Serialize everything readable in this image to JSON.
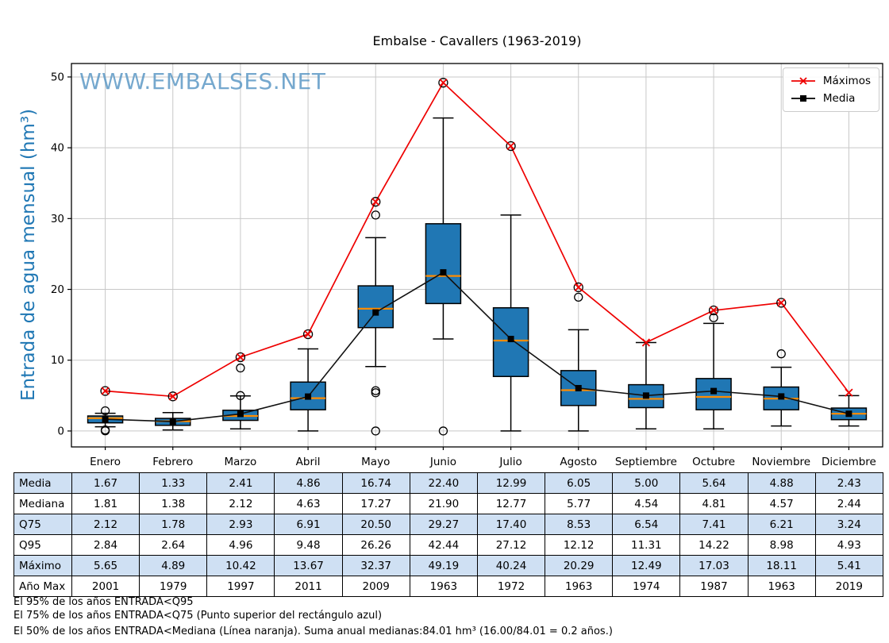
{
  "title": "Embalse - Cavallers (1963-2019)",
  "watermark": "WWW.EMBALSES.NET",
  "legend": {
    "maximos_label": "Máximos",
    "media_label": "Media"
  },
  "y_axis": {
    "label": "Entrada de agua mensual (hm³)",
    "ticks": [
      0,
      10,
      20,
      30,
      40,
      50
    ]
  },
  "months": [
    "Enero",
    "Febrero",
    "Marzo",
    "Abril",
    "Mayo",
    "Junio",
    "Julio",
    "Agosto",
    "Septiembre",
    "Octubre",
    "Noviembre",
    "Diciembre"
  ],
  "chart_data": {
    "type": "boxplot",
    "title": "Embalse - Cavallers (1963-2019)",
    "ylabel": "Entrada de agua mensual (hm³)",
    "categories": [
      "Enero",
      "Febrero",
      "Marzo",
      "Abril",
      "Mayo",
      "Junio",
      "Julio",
      "Agosto",
      "Septiembre",
      "Octubre",
      "Noviembre",
      "Diciembre"
    ],
    "ylim": [
      -2.25,
      51.9
    ],
    "yticks": [
      0,
      10,
      20,
      30,
      40,
      50
    ],
    "grid": true,
    "legend_position": "upper right",
    "box_fill": "#2077b4",
    "box_edge": "#000000",
    "median_color": "#ff8c00",
    "grid_color": "#c8c8c8",
    "series": [
      {
        "name": "Máximos",
        "color": "#ee0000",
        "marker": "x",
        "values": [
          5.65,
          4.89,
          10.42,
          13.67,
          32.37,
          49.19,
          40.24,
          20.29,
          12.49,
          17.03,
          18.11,
          5.41
        ]
      },
      {
        "name": "Media",
        "color": "#111111",
        "marker": "square",
        "values": [
          1.67,
          1.33,
          2.41,
          4.86,
          16.74,
          22.4,
          12.99,
          6.05,
          5.0,
          5.64,
          4.88,
          2.43
        ]
      }
    ],
    "boxes": [
      {
        "month": "Enero",
        "q25": 1.15,
        "median": 1.81,
        "q75": 2.12,
        "whisker_low": 0.6,
        "whisker_high": 2.5,
        "outliers": [
          2.85,
          0.15,
          0.02
        ],
        "max_circled": true
      },
      {
        "month": "Febrero",
        "q25": 0.8,
        "median": 1.38,
        "q75": 1.78,
        "whisker_low": 0.15,
        "whisker_high": 2.6,
        "outliers": [],
        "max_circled": true
      },
      {
        "month": "Marzo",
        "q25": 1.5,
        "median": 2.12,
        "q75": 2.93,
        "whisker_low": 0.3,
        "whisker_high": 4.96,
        "outliers": [
          8.9,
          5.0
        ],
        "max_circled": true
      },
      {
        "month": "Abril",
        "q25": 3.0,
        "median": 4.63,
        "q75": 6.91,
        "whisker_low": 0.0,
        "whisker_high": 11.6,
        "outliers": [],
        "max_circled": true
      },
      {
        "month": "Mayo",
        "q25": 14.6,
        "median": 17.27,
        "q75": 20.5,
        "whisker_low": 9.1,
        "whisker_high": 27.3,
        "outliers": [
          30.5,
          5.7,
          5.4,
          0.0
        ],
        "max_circled": true
      },
      {
        "month": "Junio",
        "q25": 18.0,
        "median": 21.9,
        "q75": 29.27,
        "whisker_low": 13.0,
        "whisker_high": 44.2,
        "outliers": [
          0.0
        ],
        "max_circled": true
      },
      {
        "month": "Julio",
        "q25": 7.7,
        "median": 12.77,
        "q75": 17.4,
        "whisker_low": 0.0,
        "whisker_high": 30.5,
        "outliers": [],
        "max_circled": true
      },
      {
        "month": "Agosto",
        "q25": 3.6,
        "median": 5.77,
        "q75": 8.53,
        "whisker_low": 0.0,
        "whisker_high": 14.3,
        "outliers": [
          18.9
        ],
        "max_circled": true
      },
      {
        "month": "Septiembre",
        "q25": 3.3,
        "median": 4.54,
        "q75": 6.54,
        "whisker_low": 0.3,
        "whisker_high": 12.49,
        "outliers": [],
        "max_circled": false
      },
      {
        "month": "Octubre",
        "q25": 3.0,
        "median": 4.81,
        "q75": 7.41,
        "whisker_low": 0.3,
        "whisker_high": 15.2,
        "outliers": [
          16.0
        ],
        "max_circled": true
      },
      {
        "month": "Noviembre",
        "q25": 3.0,
        "median": 4.57,
        "q75": 6.21,
        "whisker_low": 0.7,
        "whisker_high": 9.0,
        "outliers": [
          10.9
        ],
        "max_circled": true
      },
      {
        "month": "Diciembre",
        "q25": 1.6,
        "median": 2.44,
        "q75": 3.24,
        "whisker_low": 0.7,
        "whisker_high": 5.0,
        "outliers": [],
        "max_circled": false
      }
    ]
  },
  "table": {
    "columns": [
      "Enero",
      "Febrero",
      "Marzo",
      "Abril",
      "Mayo",
      "Junio",
      "Julio",
      "Agosto",
      "Septiembre",
      "Octubre",
      "Noviembre",
      "Diciembre"
    ],
    "rows": [
      {
        "label": "Media",
        "values": [
          "1.67",
          "1.33",
          "2.41",
          "4.86",
          "16.74",
          "22.40",
          "12.99",
          "6.05",
          "5.00",
          "5.64",
          "4.88",
          "2.43"
        ]
      },
      {
        "label": "Mediana",
        "values": [
          "1.81",
          "1.38",
          "2.12",
          "4.63",
          "17.27",
          "21.90",
          "12.77",
          "5.77",
          "4.54",
          "4.81",
          "4.57",
          "2.44"
        ]
      },
      {
        "label": "Q75",
        "values": [
          "2.12",
          "1.78",
          "2.93",
          "6.91",
          "20.50",
          "29.27",
          "17.40",
          "8.53",
          "6.54",
          "7.41",
          "6.21",
          "3.24"
        ]
      },
      {
        "label": "Q95",
        "values": [
          "2.84",
          "2.64",
          "4.96",
          "9.48",
          "26.26",
          "42.44",
          "27.12",
          "12.12",
          "11.31",
          "14.22",
          "8.98",
          "4.93"
        ]
      },
      {
        "label": "Máximo",
        "values": [
          "5.65",
          "4.89",
          "10.42",
          "13.67",
          "32.37",
          "49.19",
          "40.24",
          "20.29",
          "12.49",
          "17.03",
          "18.11",
          "5.41"
        ]
      },
      {
        "label": "Año Max",
        "values": [
          "2001",
          "1979",
          "1997",
          "2011",
          "2009",
          "1963",
          "1972",
          "1963",
          "1974",
          "1987",
          "1963",
          "2019"
        ]
      }
    ],
    "row_bg_blue": "#cfe0f3"
  },
  "footnotes": [
    "El 95% de los años ENTRADA<Q95",
    "El 75% de los años ENTRADA<Q75 (Punto superior del rectángulo azul)",
    "El 50% de los años ENTRADA<Mediana (Línea naranja). Suma anual medianas:84.01 hm³ (16.00/84.01 = 0.2 años.)"
  ]
}
